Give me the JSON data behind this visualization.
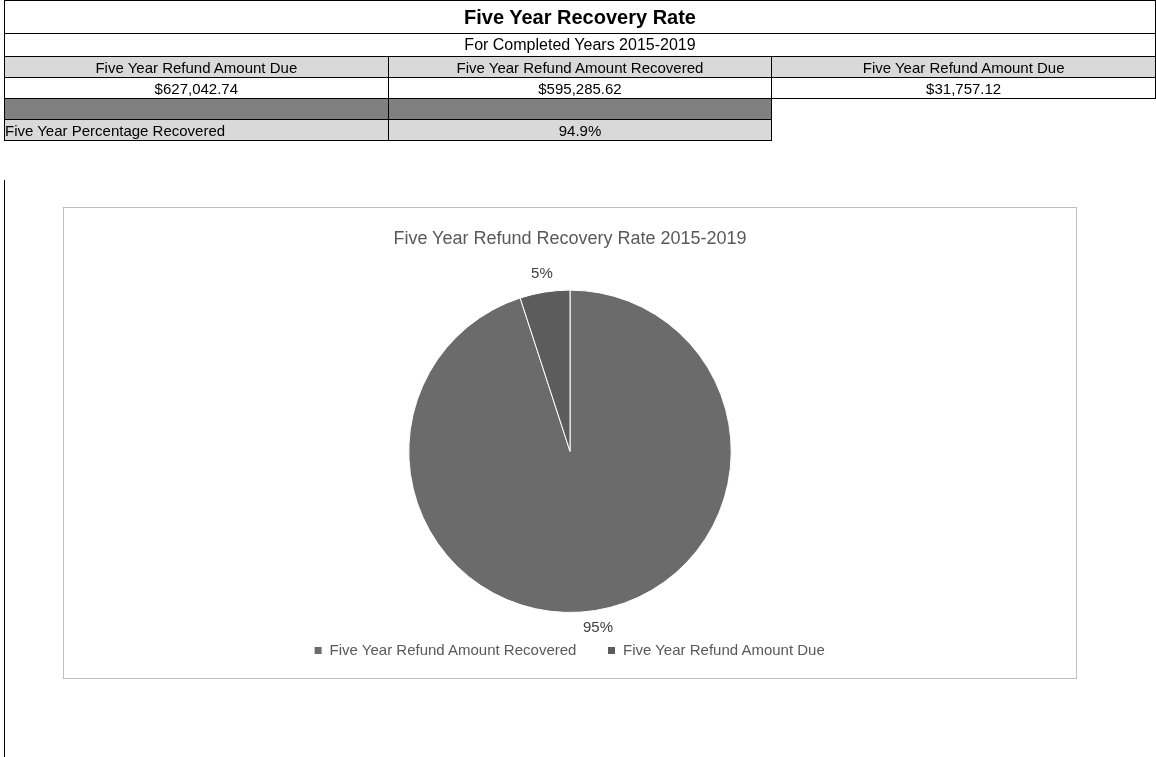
{
  "chart_data": [
    {
      "type": "other",
      "title": "Five Year Recovery Rate",
      "subtitle": "For Completed Years 2015-2019",
      "annotations": [
        "Five Year Refund Amount Due",
        "Five Year Refund Amount Recovered",
        "Five Year Refund Amount Due",
        "$627,042.74",
        "$595,285.62",
        "$31,757.12",
        "Five Year Percentage Recovered",
        "94.9%"
      ]
    },
    {
      "type": "pie",
      "title": "Five Year Refund Recovery Rate 2015-2019",
      "categories": [
        "Five Year Refund Amount Recovered",
        "Five Year Refund Amount Due"
      ],
      "values": [
        95,
        5
      ],
      "colors": [
        "#6b6b6b",
        "#5c5c5c"
      ],
      "value_labels": [
        "95%",
        "5%"
      ],
      "legend": "bottom"
    }
  ]
}
